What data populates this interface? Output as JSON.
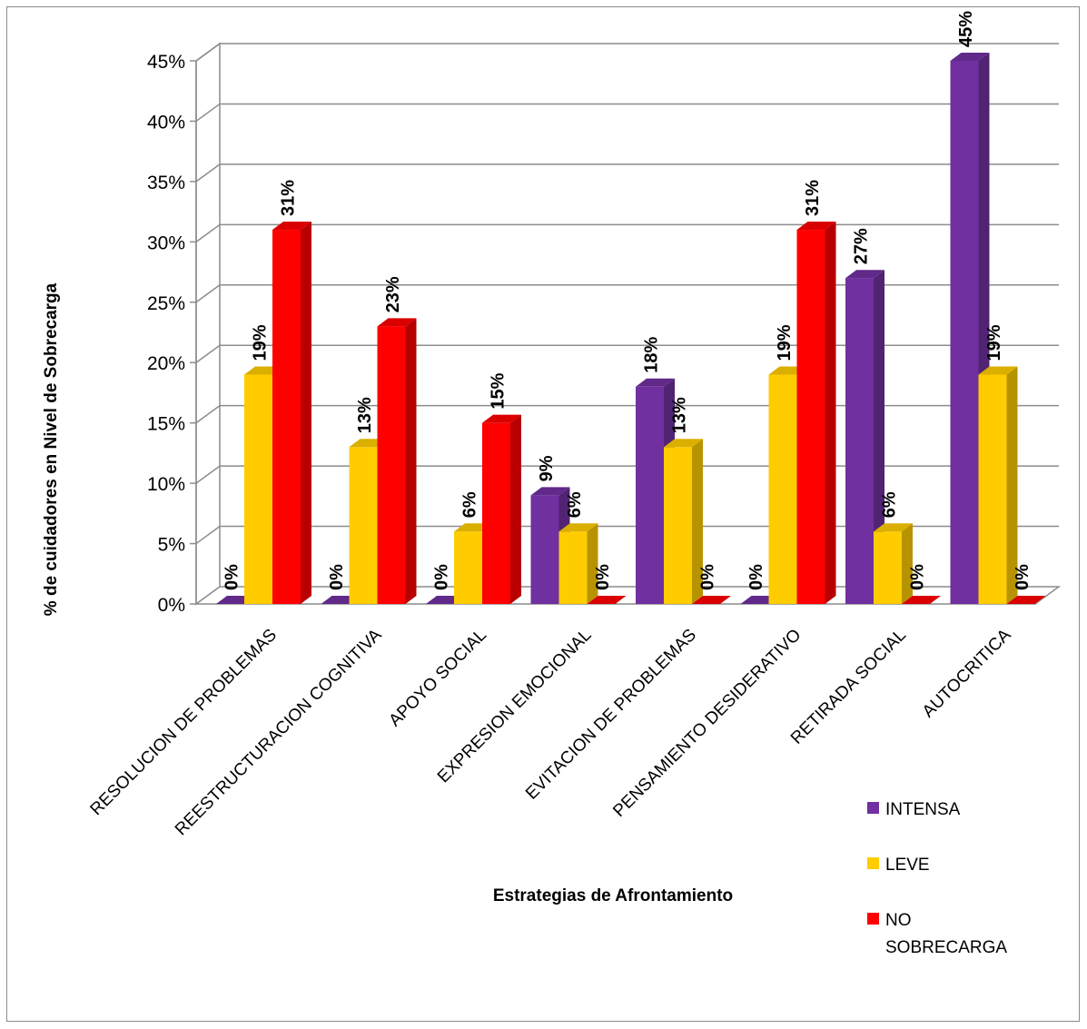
{
  "chart_data": {
    "type": "bar",
    "xlabel": "Estrategias de Afrontamiento",
    "ylabel": "% de cuidadores en Nivel de Sobrecarga",
    "ylim": [
      0,
      45
    ],
    "yticks": [
      "0%",
      "5%",
      "10%",
      "15%",
      "20%",
      "25%",
      "30%",
      "35%",
      "40%",
      "45%"
    ],
    "grid": true,
    "legend_position": "bottom-right",
    "categories": [
      "RESOLUCION DE PROBLEMAS",
      "REESTRUCTURACION COGNITIVA",
      "APOYO SOCIAL",
      "EXPRESION EMOCIONAL",
      "EVITACION DE PROBLEMAS",
      "PENSAMIENTO DESIDERATIVO",
      "RETIRADA SOCIAL",
      "AUTOCRITICA"
    ],
    "series": [
      {
        "name": "INTENSA",
        "color": "#7030a0",
        "values": [
          0,
          0,
          0,
          9,
          18,
          0,
          27,
          45
        ],
        "labels": [
          "0%",
          "0%",
          "0%",
          "9%",
          "18%",
          "0%",
          "27%",
          "45%"
        ]
      },
      {
        "name": "LEVE",
        "color": "#ffcc00",
        "values": [
          19,
          13,
          6,
          6,
          13,
          19,
          6,
          19
        ],
        "labels": [
          "19%",
          "13%",
          "6%",
          "6%",
          "13%",
          "19%",
          "6%",
          "19%"
        ]
      },
      {
        "name": "NO SOBRECARGA",
        "color": "#ff0000",
        "values": [
          31,
          23,
          15,
          0,
          0,
          31,
          0,
          0
        ],
        "labels": [
          "31%",
          "23%",
          "15%",
          "0%",
          "0%",
          "31%",
          "0%",
          "0%"
        ]
      }
    ],
    "legend": [
      {
        "lines": [
          "INTENSA"
        ],
        "color": "#7030a0"
      },
      {
        "lines": [
          "LEVE"
        ],
        "color": "#ffcc00"
      },
      {
        "lines": [
          "NO",
          "SOBRECARGA"
        ],
        "color": "#ff0000"
      }
    ]
  }
}
